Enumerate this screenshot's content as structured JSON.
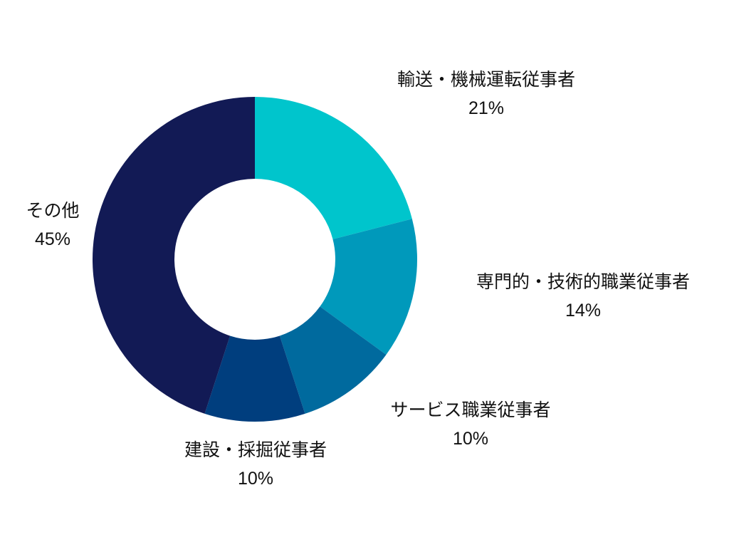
{
  "chart_data": {
    "type": "pie",
    "variant": "donut",
    "title": "",
    "slices": [
      {
        "label": "輸送・機械運転従事者",
        "value": 21,
        "value_label": "21%",
        "color": "#00C5CC"
      },
      {
        "label": "専門的・技術的職業従事者",
        "value": 14,
        "value_label": "14%",
        "color": "#0099BB"
      },
      {
        "label": "サービス職業従事者",
        "value": 10,
        "value_label": "10%",
        "color": "#006A9E"
      },
      {
        "label": "建設・採掘従事者",
        "value": 10,
        "value_label": "10%",
        "color": "#003E7E"
      },
      {
        "label": "その他",
        "value": 45,
        "value_label": "45%",
        "color": "#121A55"
      }
    ],
    "start_angle": "12 o'clock",
    "direction": "clockwise",
    "legend": "none"
  }
}
